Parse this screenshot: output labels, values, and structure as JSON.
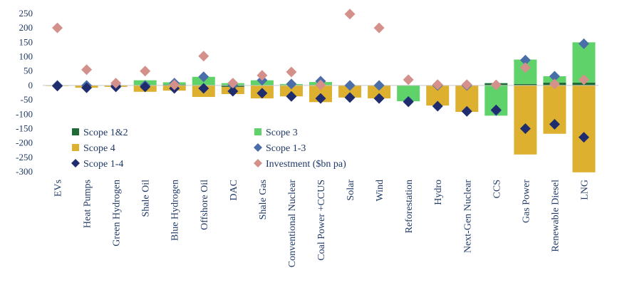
{
  "chart_data": {
    "type": "bar",
    "categories": [
      "EVs",
      "Heat Pumps",
      "Green Hydrogen",
      "Shale Oil",
      "Blue Hydrogen",
      "Offshore Oil",
      "DAC",
      "Shale Gas",
      "Conventional Nuclear",
      "Coal Power +CCUS",
      "Solar",
      "Wind",
      "Reforestation",
      "Hydro",
      "Next-Gen Nuclear",
      "CCS",
      "Gas Power",
      "Renewable Diesel",
      "LNG"
    ],
    "ylim": [
      -300,
      250
    ],
    "yticks": [
      250,
      200,
      150,
      100,
      50,
      0,
      -50,
      -100,
      -150,
      -200,
      -250,
      -300
    ],
    "grid": false,
    "series": [
      {
        "name": "Scope 1&2",
        "type": "bar",
        "color": "#1e6b35",
        "values": [
          0,
          0,
          0,
          0,
          3,
          0,
          -5,
          0,
          0,
          0,
          0,
          0,
          0,
          0,
          0,
          8,
          5,
          10,
          10
        ]
      },
      {
        "name": "Scope 3",
        "type": "bar",
        "color": "#5fd36a",
        "values": [
          0,
          0,
          0,
          18,
          8,
          30,
          8,
          18,
          5,
          12,
          0,
          0,
          -55,
          0,
          0,
          -105,
          85,
          22,
          140
        ]
      },
      {
        "name": "Scope 4",
        "type": "bar",
        "color": "#deb030",
        "values": [
          -2,
          -8,
          -5,
          -22,
          -18,
          -40,
          -25,
          -45,
          -38,
          -58,
          -42,
          -45,
          0,
          -70,
          -92,
          0,
          -240,
          -168,
          -302
        ]
      },
      {
        "name": "Scope 1-3",
        "type": "marker",
        "color": "#4a6fa8",
        "values": [
          0,
          0,
          0,
          0,
          8,
          30,
          0,
          18,
          5,
          15,
          0,
          0,
          -55,
          0,
          0,
          -88,
          88,
          32,
          145
        ]
      },
      {
        "name": "Scope 1-4",
        "type": "marker",
        "color": "#1f2d6e",
        "values": [
          -2,
          -8,
          -5,
          -5,
          -10,
          -10,
          -20,
          -27,
          -38,
          -45,
          -42,
          -45,
          -57,
          -72,
          -90,
          -85,
          -150,
          -135,
          -180
        ]
      },
      {
        "name": "Investment ($bn pa)",
        "type": "marker",
        "color": "#d4908a",
        "values": [
          200,
          55,
          8,
          50,
          2,
          102,
          8,
          35,
          47,
          2,
          248,
          200,
          20,
          3,
          3,
          2,
          62,
          5,
          20
        ]
      }
    ]
  },
  "legend": {
    "items": [
      {
        "label": "Scope 1&2",
        "shape": "square",
        "color": "#1e6b35"
      },
      {
        "label": "Scope 3",
        "shape": "square",
        "color": "#5fd36a"
      },
      {
        "label": "Scope 4",
        "shape": "square",
        "color": "#deb030"
      },
      {
        "label": "Scope 1-3",
        "shape": "diamond",
        "color": "#4a6fa8"
      },
      {
        "label": "Scope 1-4",
        "shape": "diamond",
        "color": "#1f2d6e"
      },
      {
        "label": "Investment ($bn pa)",
        "shape": "diamond",
        "color": "#d4908a"
      }
    ]
  }
}
